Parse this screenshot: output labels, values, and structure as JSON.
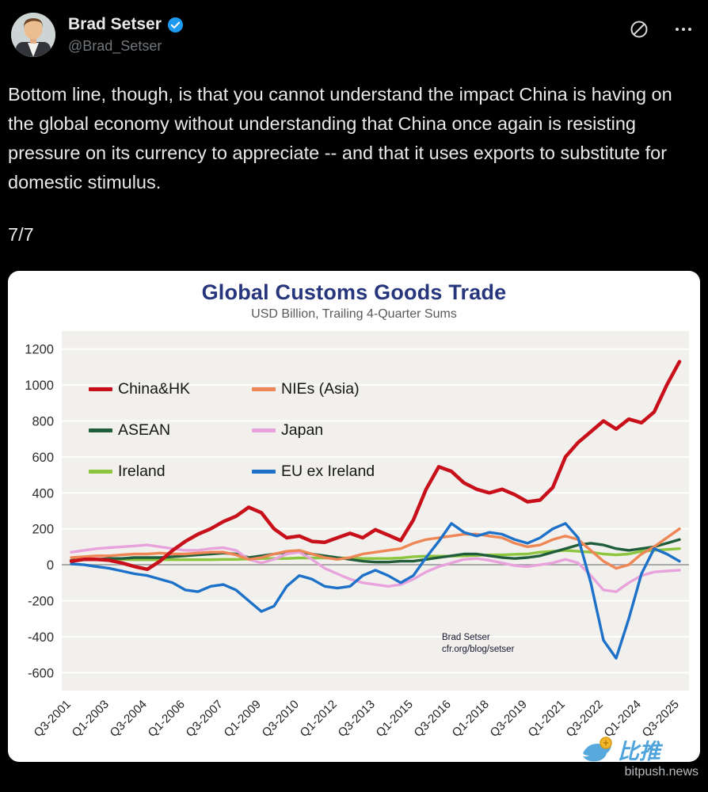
{
  "tweet": {
    "author_name": "Brad Setser",
    "handle": "@Brad_Setser",
    "body": "Bottom line, though, is that you cannot understand the impact China is having on the global economy without understanding that China once again is resisting pressure on its currency to appreciate -- and that it uses exports to substitute for domestic stimulus.",
    "thread_position": "7/7"
  },
  "icons": {
    "grok": "slashed-circle-icon",
    "more": "ellipsis-icon",
    "verified": "verified-badge-icon",
    "bitpush_bird": "bird-logo-icon"
  },
  "colors": {
    "background": "#000000",
    "text_primary": "#e7e9ea",
    "text_secondary": "#71767b",
    "verified_blue": "#1d9bf0",
    "chart_title_navy": "#26357c",
    "plot_background": "#f1f0ec",
    "bitpush_blue": "#4da3dc"
  },
  "page_watermark": {
    "brand": "比推",
    "site": "bitpush.news"
  },
  "chart_data": {
    "type": "line",
    "title": "Global Customs Goods Trade",
    "subtitle": "USD Billion, Trailing 4-Quarter Sums",
    "ylabel": "",
    "xlabel": "",
    "ylim": [
      -700,
      1300
    ],
    "yticks": [
      -600,
      -400,
      -200,
      0,
      200,
      400,
      600,
      800,
      1000,
      1200
    ],
    "grid": "horizontal-white-on-light-gray",
    "legend_position": "inside-top-left",
    "x_tick_labels": [
      "Q3-2001",
      "Q1-2003",
      "Q3-2004",
      "Q1-2006",
      "Q3-2007",
      "Q1-2009",
      "Q3-2010",
      "Q1-2012",
      "Q3-2013",
      "Q1-2015",
      "Q3-2016",
      "Q1-2018",
      "Q3-2019",
      "Q1-2021",
      "Q3-2022",
      "Q1-2024",
      "Q3-2025"
    ],
    "points_per_tick": 3,
    "x_note": "series values are half-yearly from Q3-2001 to Q3-2025; every 3rd point aligns with a labeled tick",
    "watermark": [
      "Brad Setser",
      "cfr.org/blog/setser"
    ],
    "series": [
      {
        "name": "China&HK",
        "color": "#c8101b",
        "values": [
          20,
          30,
          30,
          25,
          10,
          -10,
          -25,
          20,
          80,
          130,
          170,
          200,
          240,
          270,
          320,
          290,
          200,
          150,
          160,
          130,
          125,
          150,
          175,
          150,
          195,
          165,
          135,
          250,
          420,
          545,
          520,
          455,
          420,
          400,
          420,
          390,
          350,
          360,
          430,
          600,
          680,
          740,
          800,
          755,
          810,
          790,
          850,
          1000,
          1130
        ]
      },
      {
        "name": "NIEs (Asia)",
        "color": "#ef8656",
        "values": [
          40,
          45,
          50,
          50,
          55,
          60,
          60,
          65,
          60,
          60,
          65,
          70,
          70,
          55,
          30,
          40,
          60,
          75,
          80,
          60,
          40,
          30,
          40,
          60,
          70,
          80,
          90,
          120,
          140,
          150,
          160,
          170,
          170,
          160,
          150,
          120,
          100,
          110,
          140,
          160,
          140,
          80,
          20,
          -20,
          0,
          60,
          100,
          150,
          200
        ]
      },
      {
        "name": "ASEAN",
        "color": "#205e3b",
        "values": [
          25,
          30,
          30,
          35,
          35,
          40,
          40,
          40,
          45,
          50,
          55,
          60,
          65,
          60,
          40,
          50,
          60,
          70,
          70,
          60,
          50,
          40,
          30,
          20,
          15,
          15,
          20,
          20,
          30,
          40,
          50,
          60,
          60,
          50,
          40,
          35,
          40,
          50,
          70,
          90,
          110,
          120,
          110,
          90,
          80,
          90,
          100,
          120,
          140
        ]
      },
      {
        "name": "Japan",
        "color": "#e8a3dc",
        "values": [
          70,
          80,
          90,
          95,
          100,
          105,
          110,
          100,
          90,
          80,
          80,
          90,
          95,
          80,
          30,
          10,
          30,
          60,
          70,
          30,
          -20,
          -50,
          -80,
          -100,
          -110,
          -120,
          -110,
          -80,
          -40,
          -10,
          10,
          30,
          35,
          25,
          10,
          -5,
          -10,
          0,
          10,
          30,
          10,
          -60,
          -140,
          -150,
          -100,
          -60,
          -40,
          -35,
          -30
        ]
      },
      {
        "name": "Ireland",
        "color": "#8cc63e",
        "values": [
          25,
          28,
          30,
          30,
          30,
          28,
          28,
          28,
          28,
          28,
          28,
          28,
          30,
          30,
          32,
          35,
          35,
          35,
          38,
          38,
          38,
          38,
          38,
          35,
          35,
          35,
          38,
          45,
          48,
          48,
          48,
          50,
          52,
          55,
          55,
          58,
          60,
          70,
          75,
          80,
          75,
          70,
          60,
          55,
          60,
          75,
          80,
          85,
          90
        ]
      },
      {
        "name": "EU ex Ireland",
        "color": "#1d71c9",
        "values": [
          5,
          0,
          -10,
          -20,
          -35,
          -50,
          -60,
          -80,
          -100,
          -140,
          -150,
          -120,
          -110,
          -140,
          -200,
          -260,
          -230,
          -120,
          -60,
          -80,
          -120,
          -130,
          -120,
          -60,
          -30,
          -60,
          -100,
          -60,
          40,
          130,
          230,
          180,
          160,
          180,
          170,
          140,
          120,
          150,
          200,
          230,
          150,
          -100,
          -420,
          -520,
          -300,
          -50,
          90,
          60,
          20
        ]
      }
    ]
  }
}
